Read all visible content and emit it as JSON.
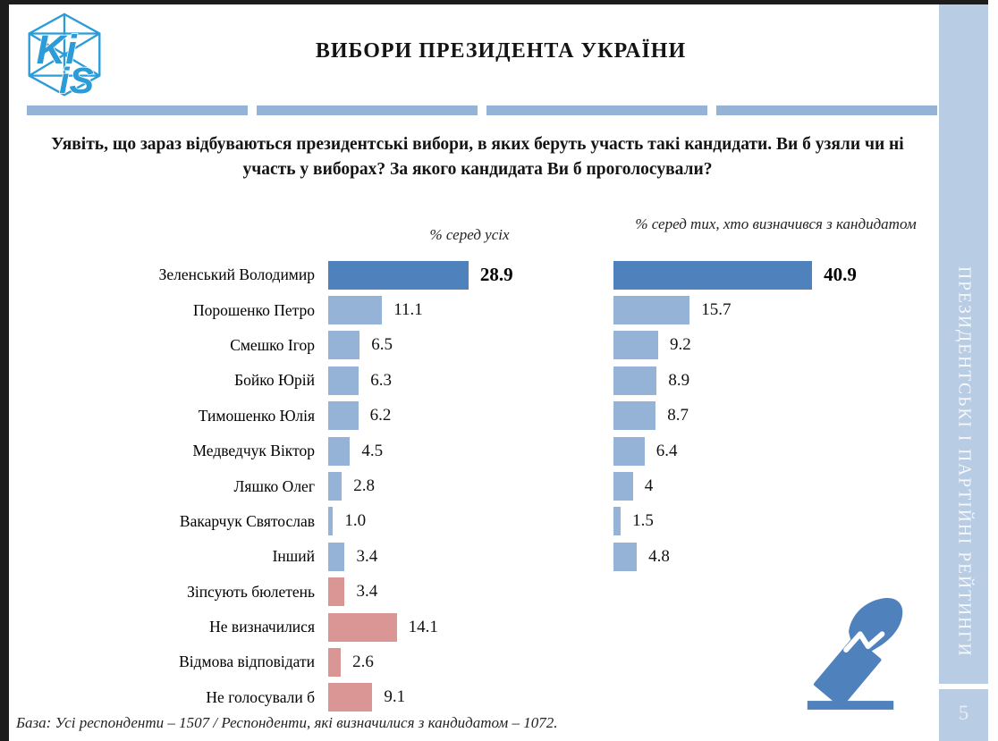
{
  "header": {
    "title": "ВИБОРИ ПРЕЗИДЕНТА УКРАЇНИ",
    "logo": {
      "text_top": "Ki",
      "text_bottom": "iS"
    }
  },
  "question": "Уявіть, що зараз відбуваються президентські вибори, в яких беруть участь такі кандидати. Ви б узяли чи ні участь у виборах? За якого кандидата Ви б проголосували?",
  "columns": {
    "left_header": "% серед усіх",
    "right_header": "% серед тих, хто визначився з кандидатом"
  },
  "chart_data": {
    "type": "bar",
    "orientation": "horizontal",
    "categories": [
      "Зеленський Володимир",
      "Порошенко Петро",
      "Смешко Ігор",
      "Бойко Юрій",
      "Тимошенко Юлія",
      "Медведчук Віктор",
      "Ляшко Олег",
      "Вакарчук Святослав",
      "Інший",
      "Зіпсують бюлетень",
      "Не визначилися",
      "Відмова відповідати",
      "Не голосували б"
    ],
    "series": [
      {
        "name": "% серед усіх",
        "values": [
          28.9,
          11.1,
          6.5,
          6.3,
          6.2,
          4.5,
          2.8,
          1.0,
          3.4,
          3.4,
          14.1,
          2.6,
          9.1
        ]
      },
      {
        "name": "% серед тих, хто визначився з кандидатом",
        "values": [
          40.9,
          15.7,
          9.2,
          8.9,
          8.7,
          6.4,
          4,
          1.5,
          4.8,
          null,
          null,
          null,
          null
        ]
      }
    ],
    "display_values": [
      [
        "28.9",
        "11.1",
        "6.5",
        "6.3",
        "6.2",
        "4.5",
        "2.8",
        "1.0",
        "3.4",
        "3.4",
        "14.1",
        "2.6",
        "9.1"
      ],
      [
        "40.9",
        "15.7",
        "9.2",
        "8.9",
        "8.7",
        "6.4",
        "4",
        "1.5",
        "4.8",
        null,
        null,
        null,
        null
      ]
    ],
    "left_bar_styles": [
      "dark",
      "light",
      "light",
      "light",
      "light",
      "light",
      "light",
      "light",
      "light",
      "pink",
      "pink",
      "pink",
      "pink"
    ],
    "right_bar_styles": [
      "dark",
      "light",
      "light",
      "light",
      "light",
      "light",
      "light",
      "light",
      "light",
      null,
      null,
      null,
      null
    ],
    "xlim": [
      0,
      45
    ],
    "grid": false,
    "legend_position": "column-headers"
  },
  "footer": "База: Усі респонденти – 1507 / Респонденти, які визначилися з кандидатом – 1072.",
  "sidebar": {
    "vertical_label": "ПРЕЗИДЕНТСЬКІ І ПАРТІЙНІ РЕЙТИНГИ",
    "page_number": "5"
  },
  "colors": {
    "dark_blue": "#4f81bd",
    "light_blue": "#95b3d7",
    "pink": "#d99694",
    "sidebar_blue": "#b8cce4",
    "divider_blue": "#95b3d7",
    "logo_blue": "#2b9cd8",
    "icon_blue": "#4f81bd"
  }
}
